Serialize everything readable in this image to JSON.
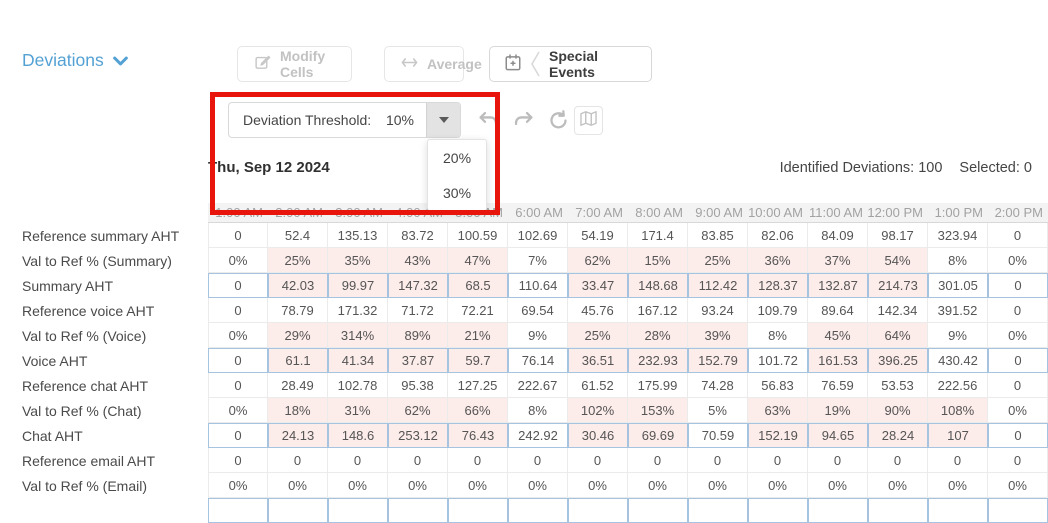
{
  "page": {
    "title": "Deviations"
  },
  "toolbar": {
    "modify_cells_label": "Modify Cells",
    "average_label": "Average",
    "special_events_label": "Special Events"
  },
  "threshold": {
    "label": "Deviation Threshold:",
    "value": "10%",
    "options": [
      "20%",
      "30%"
    ]
  },
  "status": {
    "date": "Thu, Sep 12 2024",
    "identified_label": "Identified Deviations:",
    "identified_value": "100",
    "selected_label": "Selected:",
    "selected_value": "0"
  },
  "icons": {
    "title_chevron": "chevron-down",
    "modify": "edit-pencil-square",
    "average": "left-right-arrow",
    "special_events": "calendar-plus",
    "history": [
      "undo",
      "redo",
      "refresh"
    ],
    "map": "folded-map",
    "threshold_caret": "caret-down"
  },
  "colors": {
    "accent_blue": "#54a1d4",
    "annotation_red": "#e8150d",
    "flagged_pink": "#fcecea",
    "editable_border_blue": "#a6c3e0",
    "header_bg": "#f3f3f3"
  },
  "table": {
    "time_headers": [
      "1:00 AM",
      "2:00 AM",
      "3:00 AM",
      "4:00 AM",
      "5:00 AM",
      "6:00 AM",
      "7:00 AM",
      "8:00 AM",
      "9:00 AM",
      "10:00 AM",
      "11:00 AM",
      "12:00 PM",
      "1:00 PM",
      "2:00 PM"
    ],
    "has_partial_bottom_row": true,
    "rows": [
      {
        "label": "Reference summary AHT",
        "type": "reference",
        "values": [
          "0",
          "52.4",
          "135.13",
          "83.72",
          "100.59",
          "102.69",
          "54.19",
          "171.4",
          "83.85",
          "82.06",
          "84.09",
          "98.17",
          "323.94",
          "0"
        ],
        "flagged": [
          false,
          false,
          false,
          false,
          false,
          false,
          false,
          false,
          false,
          false,
          false,
          false,
          false,
          false
        ]
      },
      {
        "label": "Val to Ref % (Summary)",
        "type": "percent",
        "values": [
          "0%",
          "25%",
          "35%",
          "43%",
          "47%",
          "7%",
          "62%",
          "15%",
          "25%",
          "36%",
          "37%",
          "54%",
          "8%",
          "0%"
        ],
        "flagged": [
          false,
          true,
          true,
          true,
          true,
          false,
          true,
          true,
          true,
          true,
          true,
          true,
          false,
          false
        ]
      },
      {
        "label": "Summary AHT",
        "type": "editable",
        "values": [
          "0",
          "42.03",
          "99.97",
          "147.32",
          "68.5",
          "110.64",
          "33.47",
          "148.68",
          "112.42",
          "128.37",
          "132.87",
          "214.73",
          "301.05",
          "0"
        ],
        "flagged": [
          false,
          true,
          true,
          true,
          true,
          false,
          true,
          true,
          true,
          true,
          true,
          true,
          false,
          false
        ]
      },
      {
        "label": "Reference voice AHT",
        "type": "reference",
        "values": [
          "0",
          "78.79",
          "171.32",
          "71.72",
          "72.21",
          "69.54",
          "45.76",
          "167.12",
          "93.24",
          "109.79",
          "89.64",
          "142.34",
          "391.52",
          "0"
        ],
        "flagged": [
          false,
          false,
          false,
          false,
          false,
          false,
          false,
          false,
          false,
          false,
          false,
          false,
          false,
          false
        ]
      },
      {
        "label": "Val to Ref % (Voice)",
        "type": "percent",
        "values": [
          "0%",
          "29%",
          "314%",
          "89%",
          "21%",
          "9%",
          "25%",
          "28%",
          "39%",
          "8%",
          "45%",
          "64%",
          "9%",
          "0%"
        ],
        "flagged": [
          false,
          true,
          true,
          true,
          true,
          false,
          true,
          true,
          true,
          false,
          true,
          true,
          false,
          false
        ]
      },
      {
        "label": "Voice AHT",
        "type": "editable",
        "values": [
          "0",
          "61.1",
          "41.34",
          "37.87",
          "59.7",
          "76.14",
          "36.51",
          "232.93",
          "152.79",
          "101.72",
          "161.53",
          "396.25",
          "430.42",
          "0"
        ],
        "flagged": [
          false,
          true,
          true,
          true,
          true,
          false,
          true,
          true,
          true,
          false,
          true,
          true,
          false,
          false
        ]
      },
      {
        "label": "Reference chat AHT",
        "type": "reference",
        "values": [
          "0",
          "28.49",
          "102.78",
          "95.38",
          "127.25",
          "222.67",
          "61.52",
          "175.99",
          "74.28",
          "56.83",
          "76.59",
          "53.53",
          "222.56",
          "0"
        ],
        "flagged": [
          false,
          false,
          false,
          false,
          false,
          false,
          false,
          false,
          false,
          false,
          false,
          false,
          false,
          false
        ]
      },
      {
        "label": "Val to Ref % (Chat)",
        "type": "percent",
        "values": [
          "0%",
          "18%",
          "31%",
          "62%",
          "66%",
          "8%",
          "102%",
          "153%",
          "5%",
          "63%",
          "19%",
          "90%",
          "108%",
          "0%"
        ],
        "flagged": [
          false,
          true,
          true,
          true,
          true,
          false,
          true,
          true,
          false,
          true,
          true,
          true,
          true,
          false
        ]
      },
      {
        "label": "Chat AHT",
        "type": "editable",
        "values": [
          "0",
          "24.13",
          "148.6",
          "253.12",
          "76.43",
          "242.92",
          "30.46",
          "69.69",
          "70.59",
          "152.19",
          "94.65",
          "28.24",
          "107",
          "0"
        ],
        "flagged": [
          false,
          true,
          true,
          true,
          true,
          false,
          true,
          true,
          false,
          true,
          true,
          true,
          true,
          false
        ]
      },
      {
        "label": "Reference email AHT",
        "type": "reference",
        "values": [
          "0",
          "0",
          "0",
          "0",
          "0",
          "0",
          "0",
          "0",
          "0",
          "0",
          "0",
          "0",
          "0",
          "0"
        ],
        "flagged": [
          false,
          false,
          false,
          false,
          false,
          false,
          false,
          false,
          false,
          false,
          false,
          false,
          false,
          false
        ]
      },
      {
        "label": "Val to Ref % (Email)",
        "type": "percent",
        "values": [
          "0%",
          "0%",
          "0%",
          "0%",
          "0%",
          "0%",
          "0%",
          "0%",
          "0%",
          "0%",
          "0%",
          "0%",
          "0%",
          "0%"
        ],
        "flagged": [
          false,
          false,
          false,
          false,
          false,
          false,
          false,
          false,
          false,
          false,
          false,
          false,
          false,
          false
        ]
      }
    ]
  }
}
